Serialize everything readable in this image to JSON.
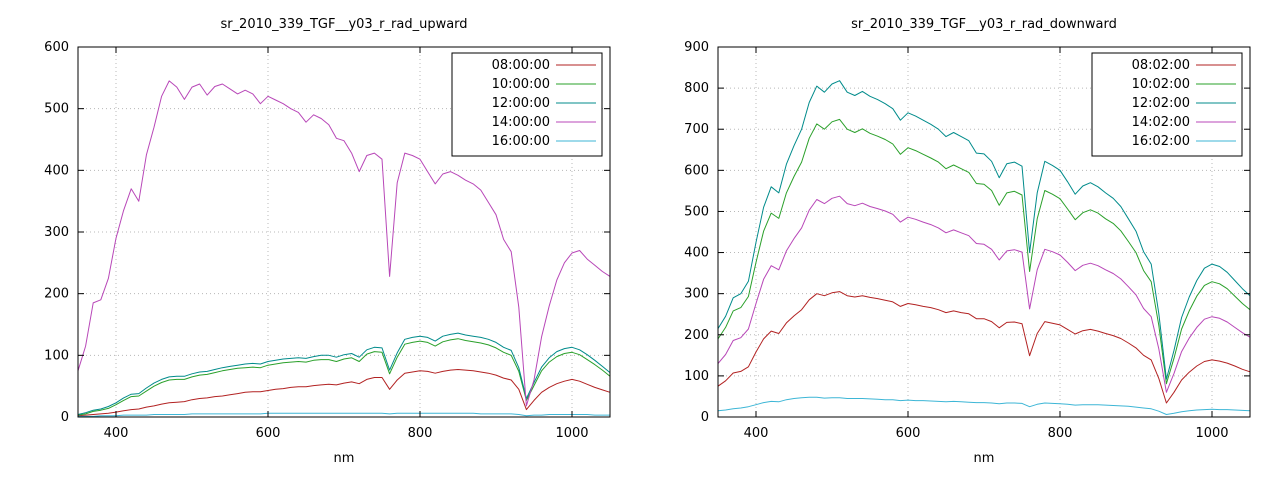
{
  "colors": {
    "grid": "#b8b8b8",
    "axis": "#000000",
    "background": "#ffffff"
  },
  "chart_data": [
    {
      "type": "line",
      "title": "sr_2010_339_TGF__y03_r_rad_upward",
      "xlabel": "nm",
      "ylabel": "",
      "xlim": [
        350,
        1050
      ],
      "ylim": [
        0,
        600
      ],
      "xticks": [
        400,
        600,
        800,
        1000
      ],
      "yticks": [
        0,
        100,
        200,
        300,
        400,
        500,
        600
      ],
      "grid": true,
      "legend_position": "top-right",
      "x": [
        350,
        360,
        370,
        380,
        390,
        400,
        410,
        420,
        430,
        440,
        450,
        460,
        470,
        480,
        490,
        500,
        510,
        520,
        530,
        540,
        550,
        560,
        570,
        580,
        590,
        600,
        610,
        620,
        630,
        640,
        650,
        660,
        670,
        680,
        690,
        700,
        710,
        720,
        730,
        740,
        750,
        760,
        770,
        780,
        790,
        800,
        810,
        820,
        830,
        840,
        850,
        860,
        870,
        880,
        890,
        900,
        910,
        920,
        930,
        940,
        950,
        960,
        970,
        980,
        990,
        1000,
        1010,
        1020,
        1030,
        1040,
        1050
      ],
      "series": [
        {
          "name": "08:00:00",
          "color": "#b22222",
          "values": [
            2,
            3,
            4,
            5,
            6,
            8,
            10,
            12,
            13,
            16,
            18,
            21,
            23,
            24,
            25,
            28,
            30,
            31,
            33,
            34,
            36,
            38,
            40,
            41,
            41,
            43,
            45,
            46,
            48,
            49,
            49,
            51,
            52,
            53,
            52,
            55,
            57,
            54,
            61,
            64,
            64,
            45,
            60,
            71,
            73,
            75,
            74,
            71,
            74,
            76,
            77,
            76,
            75,
            73,
            71,
            68,
            63,
            60,
            45,
            12,
            27,
            40,
            48,
            54,
            58,
            61,
            58,
            53,
            48,
            44,
            40
          ]
        },
        {
          "name": "10:00:00",
          "color": "#2aa02a",
          "values": [
            3,
            5,
            9,
            11,
            14,
            20,
            27,
            33,
            34,
            42,
            50,
            56,
            60,
            61,
            61,
            65,
            68,
            69,
            72,
            75,
            77,
            79,
            80,
            81,
            80,
            84,
            86,
            88,
            89,
            90,
            89,
            92,
            93,
            93,
            90,
            94,
            96,
            90,
            102,
            106,
            105,
            70,
            97,
            118,
            121,
            123,
            121,
            115,
            122,
            125,
            127,
            124,
            122,
            120,
            117,
            112,
            105,
            100,
            74,
            27,
            51,
            75,
            89,
            98,
            103,
            105,
            101,
            93,
            85,
            76,
            66
          ]
        },
        {
          "name": "12:00:00",
          "color": "#008b8b",
          "values": [
            4,
            7,
            11,
            13,
            17,
            23,
            31,
            37,
            38,
            47,
            55,
            61,
            65,
            66,
            66,
            70,
            73,
            74,
            77,
            80,
            82,
            84,
            86,
            87,
            86,
            90,
            92,
            94,
            95,
            96,
            95,
            98,
            100,
            100,
            97,
            101,
            103,
            97,
            109,
            113,
            112,
            76,
            104,
            126,
            129,
            131,
            129,
            123,
            131,
            134,
            136,
            133,
            131,
            129,
            126,
            121,
            113,
            108,
            80,
            30,
            56,
            81,
            96,
            106,
            111,
            113,
            109,
            101,
            92,
            82,
            72
          ]
        },
        {
          "name": "14:00:00",
          "color": "#b847b8",
          "values": [
            75,
            115,
            185,
            190,
            225,
            290,
            335,
            370,
            350,
            425,
            470,
            520,
            545,
            535,
            515,
            535,
            540,
            522,
            536,
            540,
            532,
            524,
            530,
            524,
            508,
            520,
            514,
            508,
            500,
            494,
            478,
            490,
            484,
            474,
            452,
            448,
            428,
            398,
            424,
            428,
            418,
            228,
            380,
            428,
            424,
            418,
            398,
            378,
            394,
            398,
            392,
            384,
            378,
            368,
            348,
            328,
            288,
            268,
            178,
            18,
            60,
            130,
            180,
            222,
            250,
            266,
            270,
            256,
            246,
            236,
            228
          ]
        },
        {
          "name": "16:00:00",
          "color": "#3db6d6",
          "values": [
            1,
            1,
            1,
            2,
            2,
            2,
            3,
            3,
            3,
            3,
            4,
            4,
            4,
            4,
            4,
            5,
            5,
            5,
            5,
            5,
            5,
            5,
            5,
            5,
            5,
            6,
            6,
            6,
            6,
            6,
            6,
            6,
            6,
            6,
            6,
            6,
            6,
            6,
            6,
            6,
            6,
            5,
            6,
            6,
            6,
            6,
            6,
            6,
            6,
            6,
            6,
            6,
            6,
            5,
            5,
            5,
            5,
            5,
            4,
            2,
            3,
            3,
            4,
            4,
            4,
            4,
            4,
            4,
            3,
            3,
            3
          ]
        }
      ]
    },
    {
      "type": "line",
      "title": "sr_2010_339_TGF__y03_r_rad_downward",
      "xlabel": "nm",
      "ylabel": "",
      "xlim": [
        350,
        1050
      ],
      "ylim": [
        0,
        900
      ],
      "xticks": [
        400,
        600,
        800,
        1000
      ],
      "yticks": [
        0,
        100,
        200,
        300,
        400,
        500,
        600,
        700,
        800,
        900
      ],
      "grid": true,
      "legend_position": "top-right",
      "x": [
        350,
        360,
        370,
        380,
        390,
        400,
        410,
        420,
        430,
        440,
        450,
        460,
        470,
        480,
        490,
        500,
        510,
        520,
        530,
        540,
        550,
        560,
        570,
        580,
        590,
        600,
        610,
        620,
        630,
        640,
        650,
        660,
        670,
        680,
        690,
        700,
        710,
        720,
        730,
        740,
        750,
        760,
        770,
        780,
        790,
        800,
        810,
        820,
        830,
        840,
        850,
        860,
        870,
        880,
        890,
        900,
        910,
        920,
        930,
        940,
        950,
        960,
        970,
        980,
        990,
        1000,
        1010,
        1020,
        1030,
        1040,
        1050
      ],
      "series": [
        {
          "name": "08:02:00",
          "color": "#b22222",
          "values": [
            75,
            88,
            107,
            111,
            122,
            158,
            190,
            209,
            203,
            229,
            246,
            261,
            285,
            300,
            295,
            302,
            305,
            295,
            292,
            295,
            291,
            288,
            284,
            280,
            269,
            276,
            273,
            269,
            266,
            261,
            254,
            258,
            254,
            251,
            239,
            239,
            232,
            217,
            230,
            231,
            227,
            149,
            203,
            232,
            228,
            224,
            213,
            202,
            210,
            213,
            209,
            203,
            198,
            191,
            180,
            168,
            150,
            139,
            94,
            34,
            60,
            90,
            109,
            124,
            135,
            139,
            136,
            131,
            124,
            116,
            110
          ]
        },
        {
          "name": "10:02:00",
          "color": "#2aa02a",
          "values": [
            190,
            218,
            258,
            266,
            293,
            376,
            452,
            496,
            483,
            545,
            585,
            620,
            678,
            713,
            700,
            718,
            724,
            700,
            692,
            701,
            690,
            683,
            675,
            664,
            639,
            655,
            648,
            639,
            630,
            620,
            604,
            613,
            604,
            595,
            568,
            566,
            551,
            515,
            545,
            549,
            540,
            354,
            482,
            551,
            542,
            531,
            506,
            480,
            497,
            504,
            496,
            482,
            471,
            453,
            427,
            400,
            356,
            329,
            223,
            81,
            143,
            214,
            258,
            294,
            320,
            329,
            324,
            312,
            294,
            276,
            261
          ]
        },
        {
          "name": "12:02:00",
          "color": "#008b8b",
          "values": [
            215,
            245,
            290,
            300,
            330,
            425,
            510,
            560,
            545,
            615,
            660,
            700,
            765,
            805,
            790,
            810,
            818,
            790,
            782,
            792,
            780,
            772,
            762,
            750,
            722,
            740,
            732,
            722,
            712,
            700,
            682,
            692,
            682,
            672,
            642,
            640,
            622,
            582,
            616,
            620,
            610,
            400,
            545,
            622,
            612,
            600,
            572,
            542,
            562,
            570,
            560,
            545,
            532,
            512,
            482,
            452,
            402,
            372,
            252,
            92,
            162,
            242,
            292,
            332,
            362,
            372,
            366,
            352,
            332,
            312,
            295
          ]
        },
        {
          "name": "14:02:00",
          "color": "#b847b8",
          "values": [
            130,
            152,
            186,
            193,
            214,
            276,
            335,
            368,
            358,
            404,
            434,
            460,
            503,
            529,
            519,
            532,
            537,
            519,
            514,
            520,
            512,
            507,
            501,
            493,
            474,
            486,
            481,
            474,
            468,
            460,
            448,
            455,
            448,
            441,
            422,
            420,
            408,
            382,
            404,
            407,
            401,
            263,
            358,
            408,
            402,
            394,
            376,
            356,
            369,
            374,
            368,
            358,
            349,
            336,
            317,
            297,
            264,
            244,
            166,
            60,
            106,
            159,
            192,
            218,
            238,
            244,
            240,
            231,
            218,
            205,
            194
          ]
        },
        {
          "name": "16:02:00",
          "color": "#3db6d6",
          "values": [
            15,
            17,
            20,
            22,
            25,
            30,
            35,
            38,
            37,
            42,
            45,
            47,
            48,
            48,
            46,
            47,
            47,
            45,
            45,
            45,
            44,
            43,
            42,
            42,
            40,
            41,
            40,
            40,
            39,
            38,
            37,
            38,
            37,
            36,
            35,
            35,
            34,
            32,
            34,
            34,
            33,
            25,
            31,
            34,
            33,
            32,
            31,
            29,
            30,
            30,
            30,
            29,
            28,
            27,
            26,
            24,
            22,
            20,
            14,
            6,
            9,
            13,
            15,
            17,
            18,
            19,
            18,
            18,
            17,
            16,
            15
          ]
        }
      ]
    }
  ]
}
